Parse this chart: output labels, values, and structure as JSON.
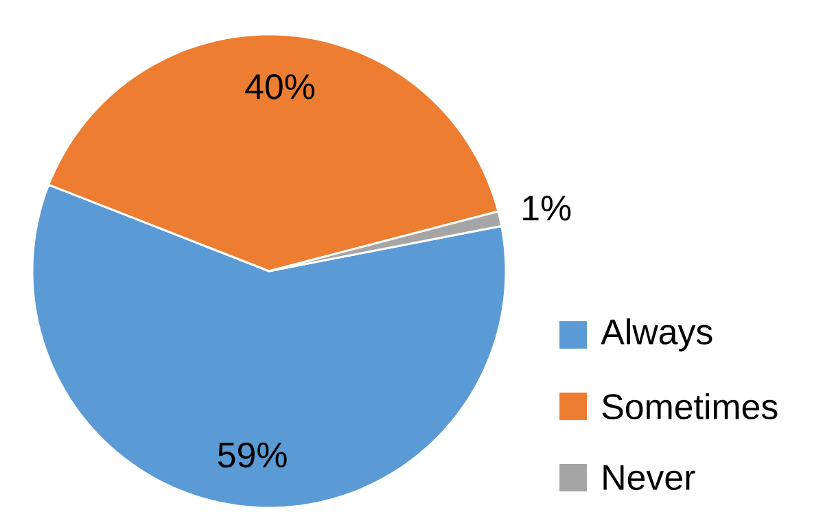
{
  "chart_data": {
    "type": "pie",
    "categories": [
      "Always",
      "Sometimes",
      "Never"
    ],
    "values": [
      59,
      40,
      1
    ],
    "colors": [
      "#5b9bd5",
      "#ed7d31",
      "#a5a5a5"
    ],
    "value_labels": [
      "59%",
      "40%",
      "1%"
    ],
    "legend": "right"
  }
}
